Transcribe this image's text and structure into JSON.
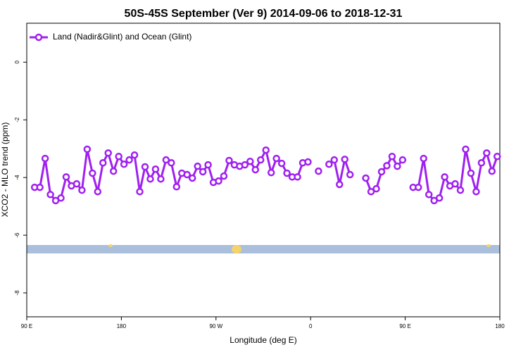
{
  "chart_data": {
    "type": "line",
    "title": "50S-45S September (Ver 9)   2014-09-06 to 2018-12-31",
    "xlabel": "Longitude (deg E)",
    "ylabel": "XCO2 - MLO trend (ppm)",
    "legend": "top-left",
    "xlim": [
      90,
      540
    ],
    "xticks": [
      {
        "value": 90,
        "label": "90 E"
      },
      180,
      {
        "value": 270,
        "label": "90 W"
      },
      {
        "value": 360,
        "label": "0"
      },
      {
        "value": 450,
        "label": "90 E"
      },
      {
        "value": 540,
        "label": "180"
      }
    ],
    "ylim": [
      -8.83,
      1.35
    ],
    "yticks": [
      0,
      -2,
      -4,
      -6,
      -8
    ],
    "x": [
      97.5,
      102.5,
      107.5,
      112.5,
      117.5,
      122.5,
      127.5,
      132.5,
      137.5,
      142.5,
      147.5,
      152.5,
      157.5,
      162.5,
      167.5,
      172.5,
      177.5,
      182.5,
      187.5,
      192.5,
      197.5,
      202.5,
      207.5,
      212.5,
      217.5,
      222.5,
      227.5,
      232.5,
      237.5,
      242.5,
      247.5,
      252.5,
      257.5,
      262.5,
      267.5,
      272.5,
      277.5,
      282.5,
      287.5,
      292.5,
      297.5,
      302.5,
      307.5,
      312.5,
      317.5,
      322.5,
      327.5,
      332.5,
      337.5,
      342.5,
      347.5,
      352.5,
      357.5,
      362.5,
      367.5,
      372.5,
      377.5,
      382.5,
      387.5,
      392.5,
      397.5,
      402.5,
      407.5,
      412.5,
      417.5,
      422.5,
      427.5,
      432.5,
      437.5,
      442.5,
      447.5,
      452.5,
      457.5,
      462.5,
      467.5,
      472.5,
      477.5,
      482.5,
      487.5,
      492.5,
      497.5,
      502.5,
      507.5,
      512.5,
      517.5,
      522.5,
      527.5,
      532.5,
      537.5
    ],
    "series": [
      {
        "name": "Land (Nadir&Glint) and Ocean (Glint)",
        "color": "#a020f0",
        "values": [
          -4.34,
          -4.34,
          -3.34,
          -4.59,
          -4.8,
          -4.71,
          -3.98,
          -4.29,
          -4.22,
          -4.44,
          -3.02,
          -3.85,
          -4.49,
          -3.49,
          -3.15,
          -3.78,
          -3.27,
          -3.54,
          -3.39,
          -3.22,
          -4.49,
          -3.63,
          -4.05,
          -3.71,
          -4.05,
          -3.39,
          -3.49,
          -4.32,
          -3.85,
          -3.9,
          -4.02,
          -3.61,
          -3.8,
          -3.56,
          -4.17,
          -4.12,
          -3.95,
          -3.41,
          -3.56,
          -3.61,
          -3.56,
          -3.44,
          -3.73,
          -3.39,
          -3.05,
          -3.83,
          -3.34,
          -3.51,
          -3.85,
          -3.98,
          -3.98,
          -3.49,
          -3.46,
          null,
          -3.78,
          null,
          -3.54,
          -3.39,
          -4.24,
          -3.37,
          -3.9,
          null,
          null,
          -4.02,
          -4.49,
          -4.39,
          -3.8,
          -3.59,
          -3.27,
          -3.61,
          -3.39,
          null,
          -4.34,
          -4.34,
          -3.34,
          -4.59,
          -4.8,
          -4.71,
          -3.98,
          -4.29,
          -4.22,
          -4.44,
          -3.02,
          -3.85,
          -4.49,
          -3.49,
          -3.15,
          -3.78,
          -3.27
        ]
      }
    ]
  }
}
